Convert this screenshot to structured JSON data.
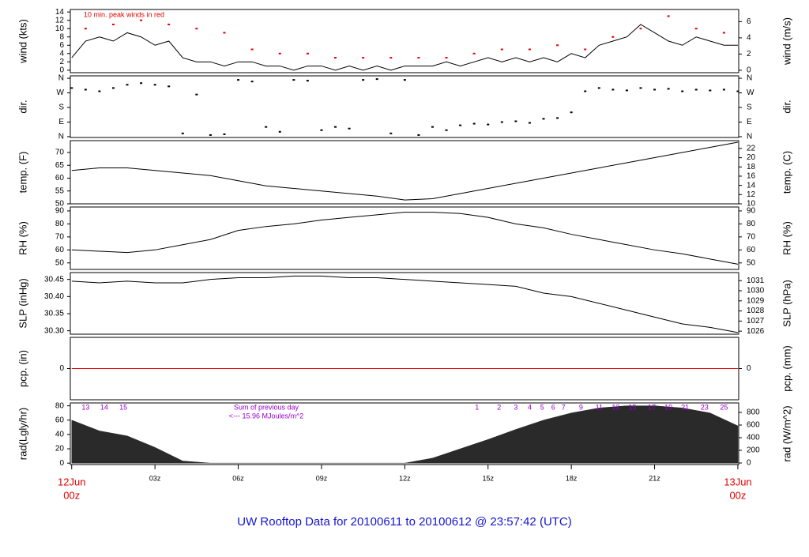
{
  "caption": "UW Rooftop Data for 20100611  to  20100612 @ 23:57:42  (UTC)",
  "caption_color": "#1414d2",
  "chart_data": [
    {
      "type": "line",
      "ylabel": "wind (kts)",
      "y2label": "wind (m/s)",
      "xlim": [
        -0.05,
        24.03
      ],
      "ylim": [
        -0.6,
        14.6
      ],
      "yticks": [
        0,
        2,
        4,
        6,
        8,
        10,
        12,
        14
      ],
      "y2lim": [
        -0.3,
        7.5
      ],
      "y2ticks": [
        0,
        2,
        4,
        6
      ],
      "annotation": "10 min. peak winds in red",
      "annotation_color": "#e00000",
      "series": [
        {
          "type": "line",
          "color": "#000000",
          "x": [
            0,
            0.5,
            1,
            1.5,
            2,
            2.5,
            3,
            3.5,
            4,
            4.5,
            5,
            5.5,
            6,
            6.5,
            7,
            7.5,
            8,
            8.5,
            9,
            9.5,
            10,
            10.5,
            11,
            11.5,
            12,
            12.5,
            13,
            13.5,
            14,
            14.5,
            15,
            15.5,
            16,
            16.5,
            17,
            17.5,
            18,
            18.5,
            19,
            19.5,
            20,
            20.5,
            21,
            21.5,
            22,
            22.5,
            23,
            23.5,
            24
          ],
          "values": [
            3,
            7,
            8,
            7,
            9,
            8,
            6,
            7,
            3,
            2,
            2,
            1,
            2,
            2,
            1,
            1,
            0,
            1,
            1,
            0,
            1,
            0,
            1,
            0,
            1,
            1,
            1,
            2,
            1,
            2,
            3,
            2,
            3,
            2,
            3,
            2,
            4,
            3,
            6,
            7,
            8,
            11,
            9,
            7,
            6,
            8,
            7,
            6,
            6
          ]
        },
        {
          "type": "scatter",
          "color": "#e00000",
          "x": [
            0.5,
            1.5,
            2.5,
            3.5,
            4.5,
            5.5,
            6.5,
            7.5,
            8.5,
            9.5,
            10.5,
            11.5,
            12.5,
            13.5,
            14.5,
            15.5,
            16.5,
            17.5,
            18.5,
            19.5,
            20.5,
            21.5,
            22.5,
            23.5
          ],
          "values": [
            10,
            11,
            12,
            11,
            10,
            9,
            5,
            4,
            4,
            3,
            3,
            3,
            3,
            3,
            4,
            5,
            5,
            6,
            5,
            8,
            10,
            13,
            10,
            9
          ]
        }
      ]
    },
    {
      "type": "scatter",
      "ylabel": "dir.",
      "y2label": "dir.",
      "xlim": [
        -0.05,
        24.03
      ],
      "ylim": [
        -5,
        375
      ],
      "yticks": [
        {
          "value": 0,
          "label": "N"
        },
        {
          "value": 90,
          "label": "E"
        },
        {
          "value": 180,
          "label": "S"
        },
        {
          "value": 270,
          "label": "W"
        },
        {
          "value": 360,
          "label": "N"
        }
      ],
      "y2lim": [
        -5,
        375
      ],
      "y2ticks": [
        {
          "value": 0,
          "label": "N"
        },
        {
          "value": 90,
          "label": "E"
        },
        {
          "value": 180,
          "label": "S"
        },
        {
          "value": 270,
          "label": "W"
        },
        {
          "value": 360,
          "label": "N"
        }
      ],
      "series": [
        {
          "type": "scatter",
          "color": "#000000",
          "x": [
            0,
            0.5,
            1,
            1.5,
            2,
            2.5,
            3,
            3.5,
            4,
            4.5,
            5,
            5.5,
            6,
            6.5,
            7,
            7.5,
            8,
            8.5,
            9,
            9.5,
            10,
            10.5,
            11,
            11.5,
            12,
            12.5,
            13,
            13.5,
            14,
            14.5,
            15,
            15.5,
            16,
            16.5,
            17,
            17.5,
            18,
            18.5,
            19,
            19.5,
            20,
            20.5,
            21,
            21.5,
            22,
            22.5,
            23,
            23.5,
            24
          ],
          "values": [
            300,
            290,
            280,
            300,
            320,
            330,
            320,
            310,
            20,
            260,
            10,
            15,
            350,
            340,
            60,
            30,
            350,
            345,
            40,
            60,
            50,
            350,
            355,
            20,
            350,
            10,
            60,
            40,
            70,
            80,
            75,
            90,
            95,
            85,
            110,
            115,
            150,
            280,
            300,
            290,
            285,
            300,
            290,
            295,
            280,
            290,
            285,
            290,
            280
          ]
        }
      ]
    },
    {
      "type": "line",
      "ylabel": "temp. (F)",
      "y2label": "temp. (C)",
      "xlim": [
        -0.05,
        24.03
      ],
      "ylim": [
        50,
        74.6
      ],
      "yticks": [
        50,
        55,
        60,
        65,
        70
      ],
      "y2lim": [
        10,
        23.7
      ],
      "y2ticks": [
        10,
        12,
        14,
        16,
        18,
        20,
        22
      ],
      "series": [
        {
          "type": "line",
          "color": "#000000",
          "x": [
            0,
            1,
            2,
            3,
            4,
            5,
            6,
            7,
            8,
            9,
            10,
            11,
            12,
            13,
            14,
            15,
            16,
            17,
            18,
            19,
            20,
            21,
            22,
            23,
            24
          ],
          "values": [
            63,
            64,
            64,
            63,
            62,
            61,
            59,
            57,
            56,
            55,
            54,
            53,
            51.5,
            52,
            54,
            56,
            58,
            60,
            62,
            64,
            66,
            68,
            70,
            72,
            74
          ]
        }
      ]
    },
    {
      "type": "line",
      "ylabel": "RH (%)",
      "y2label": "RH (%)",
      "xlim": [
        -0.05,
        24.03
      ],
      "ylim": [
        45,
        93
      ],
      "yticks": [
        50,
        60,
        70,
        80,
        90
      ],
      "y2lim": [
        45,
        93
      ],
      "y2ticks": [
        50,
        60,
        70,
        80,
        90
      ],
      "series": [
        {
          "type": "line",
          "color": "#000000",
          "x": [
            0,
            1,
            2,
            3,
            4,
            5,
            6,
            7,
            8,
            9,
            10,
            11,
            12,
            13,
            14,
            15,
            16,
            17,
            18,
            19,
            20,
            21,
            22,
            23,
            24
          ],
          "values": [
            60,
            59,
            58,
            60,
            64,
            68,
            75,
            78,
            80,
            83,
            85,
            87,
            89,
            89,
            88,
            85,
            80,
            77,
            72,
            68,
            64,
            60,
            57,
            53,
            49
          ]
        }
      ]
    },
    {
      "type": "line",
      "ylabel": "SLP (inHg)",
      "y2label": "SLP (hPa)",
      "xlim": [
        -0.05,
        24.03
      ],
      "ylim": [
        30.29,
        30.47
      ],
      "yticks": [
        {
          "value": 30.3,
          "label": "30.30"
        },
        {
          "value": 30.35,
          "label": "30.35"
        },
        {
          "value": 30.4,
          "label": "30.40"
        },
        {
          "value": 30.45,
          "label": "30.45"
        }
      ],
      "y2lim": [
        1025.7,
        1031.8
      ],
      "y2ticks": [
        1026,
        1027,
        1028,
        1029,
        1030,
        1031
      ],
      "series": [
        {
          "type": "line",
          "color": "#000000",
          "x": [
            0,
            1,
            2,
            3,
            4,
            5,
            6,
            7,
            8,
            9,
            10,
            11,
            12,
            13,
            14,
            15,
            16,
            17,
            18,
            19,
            20,
            21,
            22,
            23,
            24
          ],
          "values": [
            30.445,
            30.44,
            30.445,
            30.44,
            30.44,
            30.45,
            30.455,
            30.455,
            30.46,
            30.46,
            30.455,
            30.455,
            30.45,
            30.445,
            30.44,
            30.435,
            30.43,
            30.41,
            30.4,
            30.38,
            30.36,
            30.34,
            30.32,
            30.31,
            30.295
          ]
        }
      ]
    },
    {
      "type": "line",
      "ylabel": "pcp. (in)",
      "y2label": "pcp. (mm)",
      "xlim": [
        -0.05,
        24.03
      ],
      "ylim": [
        -1,
        1
      ],
      "yticks": [
        0
      ],
      "y2lim": [
        -1,
        1
      ],
      "y2ticks": [
        0
      ],
      "series": [
        {
          "type": "line",
          "color": "#e00000",
          "x": [
            0,
            24
          ],
          "values": [
            0,
            0
          ]
        }
      ]
    },
    {
      "type": "area",
      "ylabel": "rad(Lgly/hr)",
      "y2label": "rad (W/m^2)",
      "xlim": [
        -0.05,
        24.03
      ],
      "ylim": [
        -2,
        84
      ],
      "yticks": [
        0,
        20,
        40,
        60,
        80
      ],
      "y2lim": [
        -25,
        950
      ],
      "y2ticks": [
        0,
        200,
        400,
        600,
        800
      ],
      "xticks": [
        {
          "value": 0,
          "label": "00z"
        },
        {
          "value": 3,
          "label": "03z"
        },
        {
          "value": 6,
          "label": "06z"
        },
        {
          "value": 9,
          "label": "09z"
        },
        {
          "value": 12,
          "label": "12z"
        },
        {
          "value": 15,
          "label": "15z"
        },
        {
          "value": 18,
          "label": "18z"
        },
        {
          "value": 21,
          "label": "21z"
        },
        {
          "value": 24,
          "label": "00z"
        }
      ],
      "date_labels": [
        {
          "value": 0,
          "label": "12Jun"
        },
        {
          "value": 24,
          "label": "13Jun"
        }
      ],
      "date_color": "#e00000",
      "annotations": [
        "Sum of previous day",
        "<--- 15.96 MJoules/m^2"
      ],
      "annotation_color": "#9900cc",
      "hour_marks": [
        {
          "value": 0.5,
          "label": "13"
        },
        {
          "value": 1.17,
          "label": "14"
        },
        {
          "value": 1.86,
          "label": "15"
        },
        {
          "value": 14.6,
          "label": "1"
        },
        {
          "value": 15.4,
          "label": "2"
        },
        {
          "value": 16,
          "label": "3"
        },
        {
          "value": 16.5,
          "label": "4"
        },
        {
          "value": 16.95,
          "label": "5"
        },
        {
          "value": 17.35,
          "label": "6"
        },
        {
          "value": 17.72,
          "label": "7"
        },
        {
          "value": 18.35,
          "label": "9"
        },
        {
          "value": 19.0,
          "label": "11"
        },
        {
          "value": 19.6,
          "label": "13"
        },
        {
          "value": 20.2,
          "label": "15"
        },
        {
          "value": 20.9,
          "label": "17"
        },
        {
          "value": 21.5,
          "label": "19"
        },
        {
          "value": 22.1,
          "label": "21"
        },
        {
          "value": 22.8,
          "label": "23"
        },
        {
          "value": 23.5,
          "label": "25"
        }
      ],
      "series": [
        {
          "type": "area",
          "color": "#2a2a2a",
          "x": [
            0,
            1,
            2,
            3,
            4,
            5,
            6,
            7,
            8,
            9,
            10,
            11,
            12,
            13,
            14,
            15,
            16,
            17,
            18,
            19,
            20,
            21,
            22,
            23,
            24
          ],
          "values": [
            60,
            45,
            38,
            22,
            3,
            0,
            0,
            0,
            0,
            0,
            0,
            0,
            0,
            7,
            20,
            33,
            47,
            60,
            70,
            77,
            80,
            80,
            77,
            70,
            52
          ]
        }
      ]
    }
  ]
}
